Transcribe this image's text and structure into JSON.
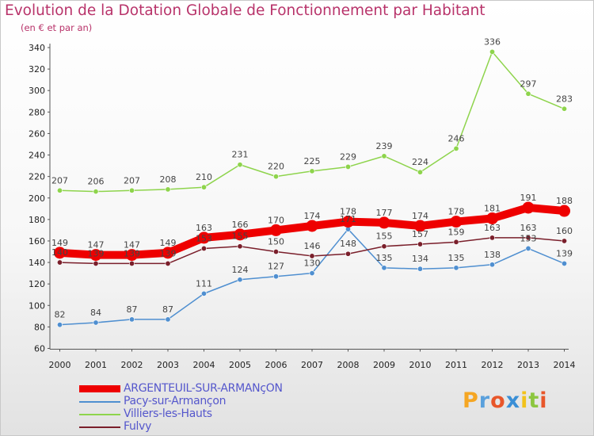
{
  "chart_data": {
    "type": "line",
    "title": "Evolution de la Dotation Globale de Fonctionnement par Habitant",
    "subtitle": "(en € et par an)",
    "xlabel": "",
    "ylabel": "",
    "x": [
      "2000",
      "2001",
      "2002",
      "2003",
      "2004",
      "2005",
      "2006",
      "2007",
      "2008",
      "2009",
      "2010",
      "2011",
      "2012",
      "2013",
      "2014"
    ],
    "y_ticks": [
      "60",
      "80",
      "100",
      "120",
      "140",
      "160",
      "180",
      "200",
      "220",
      "240",
      "260",
      "280",
      "300",
      "320",
      "340"
    ],
    "ylim": [
      60,
      340
    ],
    "grid": false,
    "legend_position": "bottom-left",
    "series": [
      {
        "name": "ARGENTEUIL-SUR-ARMANçON",
        "color": "#ee0000",
        "width": 10,
        "marker": 7.5,
        "values": [
          149,
          147,
          147,
          149,
          163,
          166,
          170,
          174,
          178,
          177,
          174,
          178,
          181,
          191,
          188
        ],
        "labels": [
          "149",
          "147",
          "147",
          "149",
          "163",
          "166",
          "170",
          "174",
          "178",
          "177",
          "174",
          "178",
          "181",
          "191",
          "188"
        ]
      },
      {
        "name": "Pacy-sur-Armançon",
        "color": "#4f8fd0",
        "width": 1.5,
        "marker": 3.2,
        "values": [
          82,
          84,
          87,
          87,
          111,
          124,
          127,
          130,
          171,
          135,
          134,
          135,
          138,
          153,
          139
        ],
        "labels": [
          "82",
          "84",
          "87",
          "87",
          "111",
          "124",
          "127",
          "130",
          "171",
          "135",
          "134",
          "135",
          "138",
          "153",
          "139"
        ]
      },
      {
        "name": "Villiers-les-Hauts",
        "color": "#8ed44c",
        "width": 1.5,
        "marker": 3.2,
        "values": [
          207,
          206,
          207,
          208,
          210,
          231,
          220,
          225,
          229,
          239,
          224,
          246,
          336,
          297,
          283
        ],
        "labels": [
          "207",
          "206",
          "207",
          "208",
          "210",
          "231",
          "220",
          "225",
          "229",
          "239",
          "224",
          "246",
          "336",
          "297",
          "283"
        ]
      },
      {
        "name": "Fulvy",
        "color": "#7a1f2b",
        "width": 1.5,
        "marker": 3.2,
        "values": [
          140,
          139,
          139,
          139,
          153,
          155,
          150,
          146,
          148,
          155,
          157,
          159,
          163,
          163,
          160
        ],
        "labels": [
          "140",
          "139",
          "139",
          "139",
          "153",
          "155",
          "150",
          "146",
          "148",
          "155",
          "157",
          "159",
          "163",
          "163",
          "160"
        ]
      }
    ]
  },
  "logo": {
    "letters": [
      "P",
      "r",
      "o",
      "x",
      "i",
      "t",
      "i"
    ],
    "colors": [
      "#f5a623",
      "#5aa0dc",
      "#e8562a",
      "#3a8fd6",
      "#f2c21b",
      "#8cc63f",
      "#e8562a"
    ]
  }
}
